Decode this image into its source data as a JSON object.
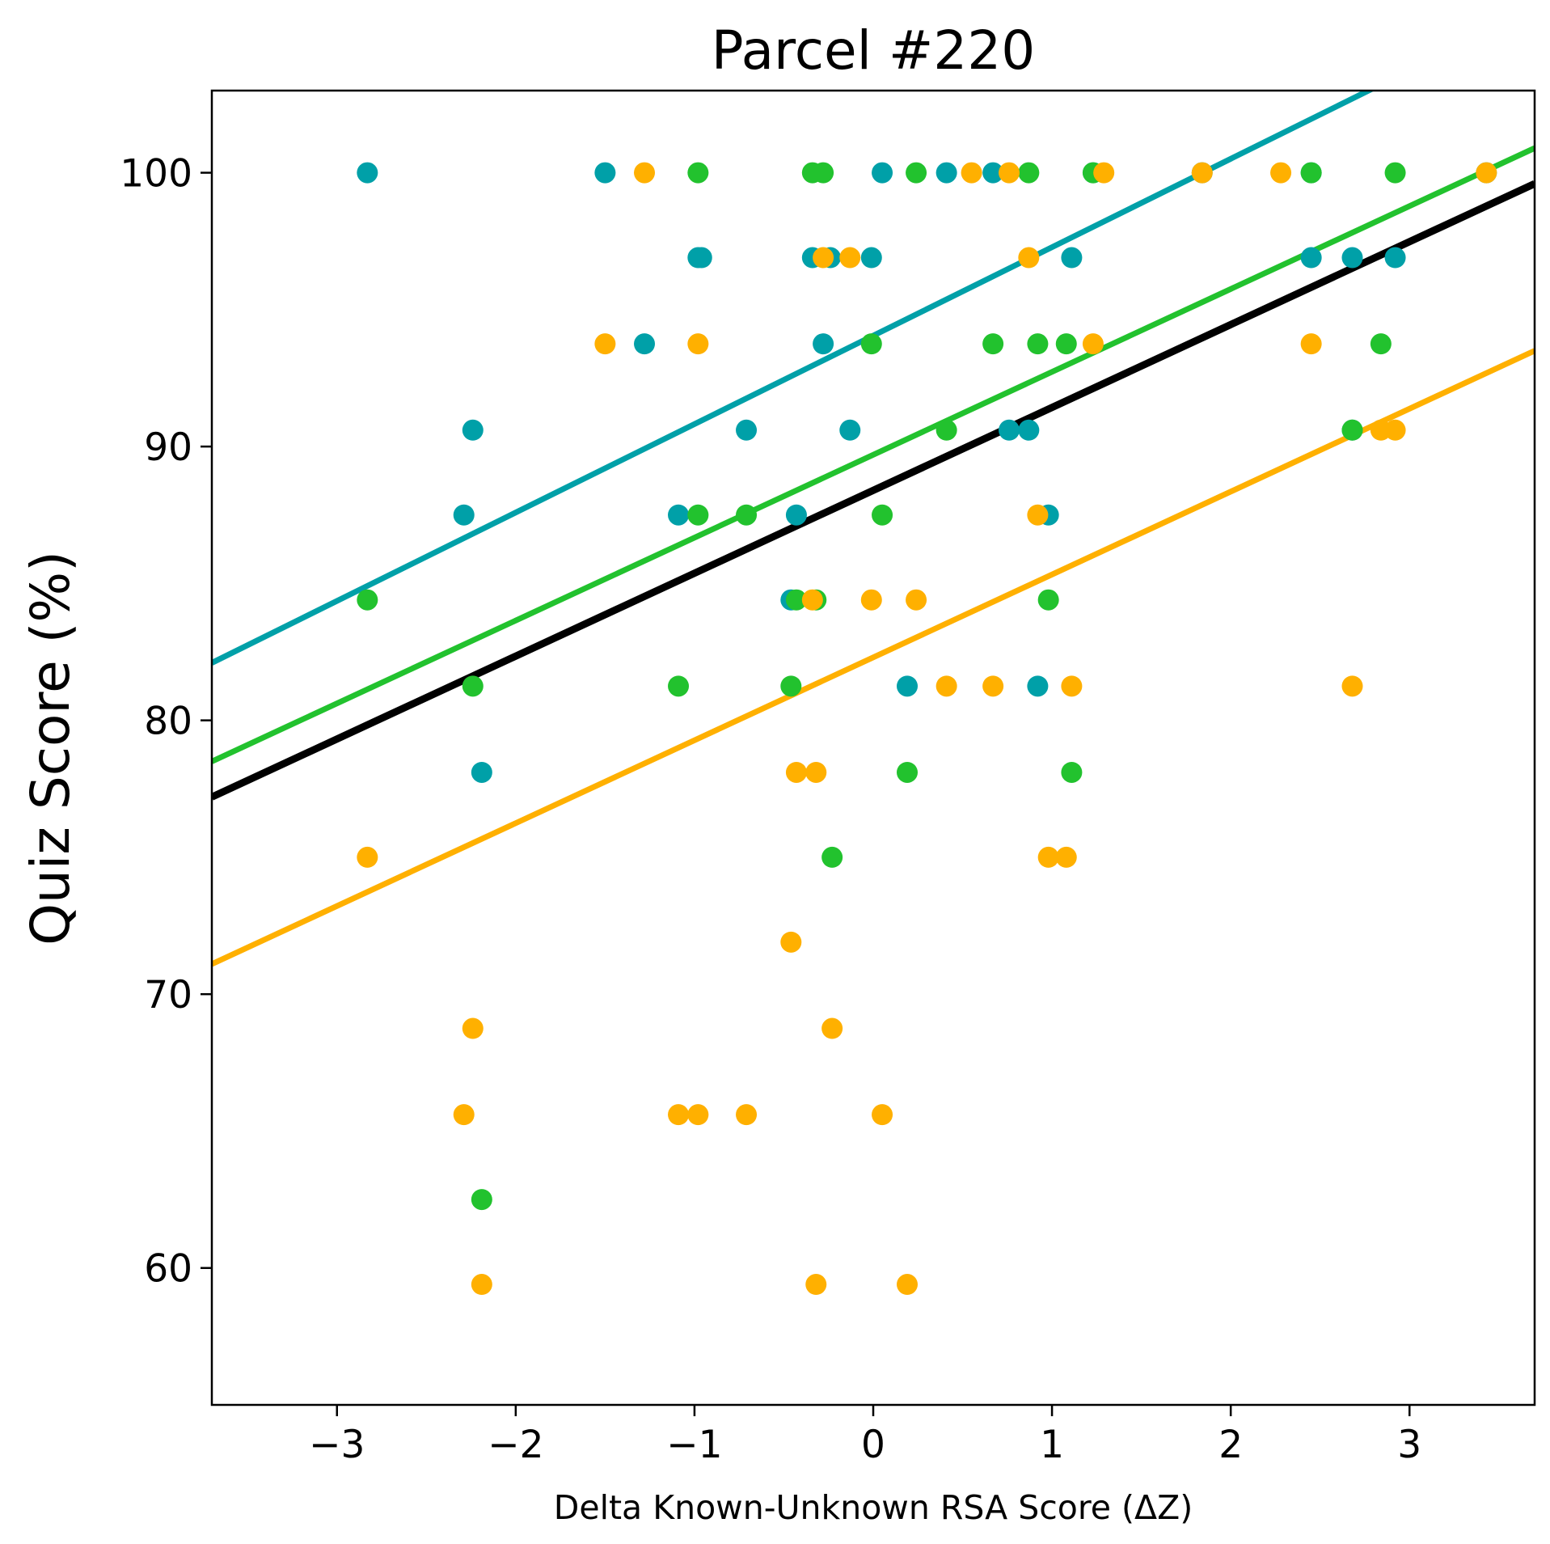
{
  "chart_data": {
    "type": "scatter",
    "title": "Parcel #220",
    "xlabel": "Delta Known-Unknown RSA Score (ΔZ)",
    "ylabel": "Quiz Score (%)",
    "xlim": [
      -3.7,
      3.7
    ],
    "ylim": [
      55,
      103
    ],
    "xticks": [
      -3,
      -2,
      -1,
      0,
      1,
      2,
      3
    ],
    "xtick_labels": [
      "−3",
      "−2",
      "−1",
      "0",
      "1",
      "2",
      "3"
    ],
    "yticks": [
      60,
      70,
      80,
      90,
      100
    ],
    "ytick_labels": [
      "60",
      "70",
      "80",
      "90",
      "100"
    ],
    "grid": false,
    "series": [
      {
        "color": "#00a0a8",
        "points": [
          [
            -2.83,
            100
          ],
          [
            -1.5,
            100
          ],
          [
            -0.98,
            96.9
          ],
          [
            -0.96,
            96.9
          ],
          [
            -1.28,
            93.75
          ],
          [
            -2.24,
            90.6
          ],
          [
            -2.29,
            87.5
          ],
          [
            -2.19,
            78.1
          ],
          [
            -1.09,
            87.5
          ],
          [
            -0.71,
            90.6
          ],
          [
            -0.43,
            87.5
          ],
          [
            -0.46,
            84.4
          ],
          [
            -0.34,
            96.9
          ],
          [
            -0.24,
            96.9
          ],
          [
            -0.28,
            93.75
          ],
          [
            -0.13,
            90.6
          ],
          [
            -0.01,
            96.9
          ],
          [
            0.05,
            100
          ],
          [
            0.41,
            100
          ],
          [
            0.67,
            100
          ],
          [
            0.19,
            81.25
          ],
          [
            0.76,
            90.6
          ],
          [
            0.87,
            90.6
          ],
          [
            0.98,
            87.5
          ],
          [
            0.92,
            81.25
          ],
          [
            1.11,
            96.9
          ],
          [
            1.23,
            100
          ],
          [
            1.84,
            100
          ],
          [
            2.45,
            96.9
          ],
          [
            2.68,
            96.9
          ],
          [
            2.92,
            96.9
          ],
          [
            2.68,
            90.6
          ],
          [
            2.45,
            100
          ],
          [
            3.43,
            100
          ]
        ]
      },
      {
        "color": "#22c22e",
        "points": [
          [
            -2.83,
            84.4
          ],
          [
            -2.24,
            81.25
          ],
          [
            -2.19,
            62.5
          ],
          [
            -1.09,
            81.25
          ],
          [
            -0.98,
            100
          ],
          [
            -0.98,
            87.5
          ],
          [
            -0.71,
            87.5
          ],
          [
            -0.46,
            81.25
          ],
          [
            -0.43,
            84.4
          ],
          [
            -0.34,
            100
          ],
          [
            -0.28,
            100
          ],
          [
            -0.32,
            84.4
          ],
          [
            -0.23,
            75
          ],
          [
            -0.01,
            93.75
          ],
          [
            0.05,
            87.5
          ],
          [
            0.19,
            78.1
          ],
          [
            0.24,
            100
          ],
          [
            0.41,
            90.6
          ],
          [
            0.67,
            93.75
          ],
          [
            0.87,
            100
          ],
          [
            0.92,
            93.75
          ],
          [
            0.98,
            84.4
          ],
          [
            1.08,
            93.75
          ],
          [
            1.11,
            78.1
          ],
          [
            1.23,
            100
          ],
          [
            2.45,
            100
          ],
          [
            2.68,
            90.6
          ],
          [
            2.84,
            93.75
          ],
          [
            2.92,
            100
          ]
        ]
      },
      {
        "color": "#ffb000",
        "points": [
          [
            -2.83,
            75
          ],
          [
            -2.24,
            68.75
          ],
          [
            -2.29,
            65.6
          ],
          [
            -2.19,
            59.4
          ],
          [
            -1.5,
            93.75
          ],
          [
            -1.28,
            100
          ],
          [
            -1.09,
            65.6
          ],
          [
            -0.98,
            93.75
          ],
          [
            -0.98,
            65.6
          ],
          [
            -0.71,
            65.6
          ],
          [
            -0.46,
            71.9
          ],
          [
            -0.43,
            78.1
          ],
          [
            -0.34,
            84.4
          ],
          [
            -0.32,
            78.1
          ],
          [
            -0.32,
            59.4
          ],
          [
            -0.28,
            96.9
          ],
          [
            -0.13,
            96.9
          ],
          [
            -0.23,
            68.75
          ],
          [
            -0.01,
            84.4
          ],
          [
            0.05,
            65.6
          ],
          [
            0.19,
            59.4
          ],
          [
            0.24,
            84.4
          ],
          [
            0.41,
            81.25
          ],
          [
            0.55,
            100
          ],
          [
            0.67,
            81.25
          ],
          [
            0.76,
            100
          ],
          [
            0.87,
            96.9
          ],
          [
            0.92,
            87.5
          ],
          [
            0.98,
            75
          ],
          [
            1.08,
            75
          ],
          [
            1.11,
            81.25
          ],
          [
            1.23,
            93.75
          ],
          [
            1.29,
            100
          ],
          [
            1.84,
            100
          ],
          [
            2.28,
            100
          ],
          [
            2.45,
            93.75
          ],
          [
            2.68,
            81.25
          ],
          [
            2.84,
            90.6
          ],
          [
            2.92,
            90.6
          ],
          [
            3.43,
            100
          ]
        ]
      }
    ],
    "fit_lines": [
      {
        "color": "#00a0a8",
        "x": [
          -3.7,
          3.7
        ],
        "y": [
          82.1,
          106.0
        ]
      },
      {
        "color": "#22c22e",
        "x": [
          -3.7,
          3.7
        ],
        "y": [
          78.5,
          100.9
        ]
      },
      {
        "color": "#000000",
        "x": [
          -3.7,
          3.7
        ],
        "y": [
          77.2,
          99.6
        ]
      },
      {
        "color": "#ffb000",
        "x": [
          -3.7,
          3.7
        ],
        "y": [
          71.1,
          93.5
        ]
      }
    ]
  }
}
